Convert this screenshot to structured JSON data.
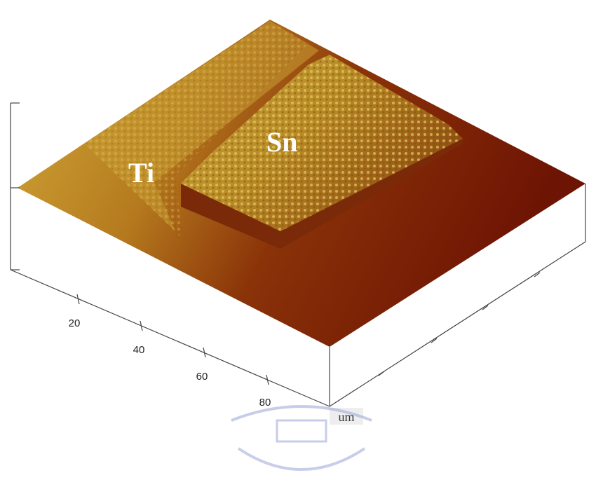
{
  "labels": {
    "ti": "Ti",
    "sn": "Sn"
  },
  "x_axis": {
    "ticks": [
      "20",
      "40",
      "60",
      "80"
    ],
    "unit": "um"
  }
}
